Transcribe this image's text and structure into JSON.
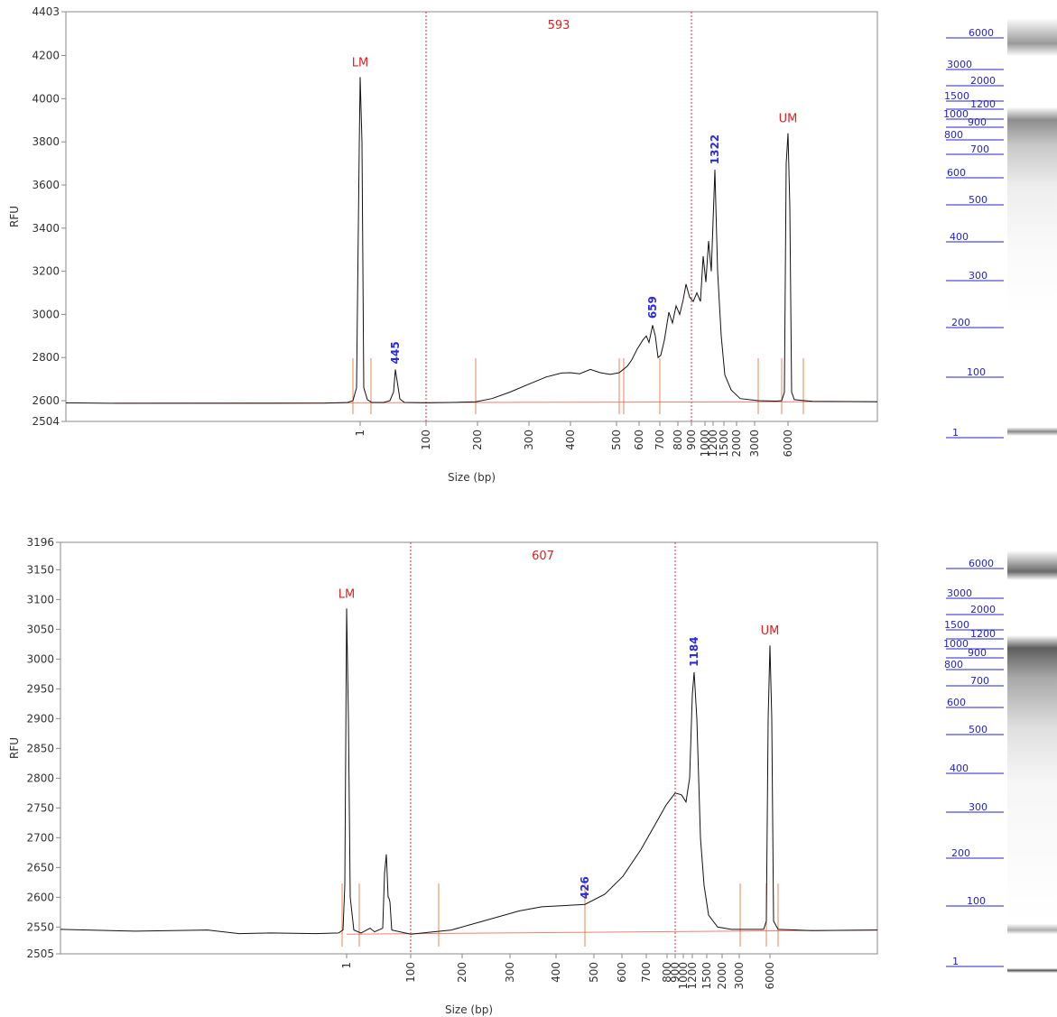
{
  "chart_data": [
    {
      "type": "line",
      "title": "",
      "xlabel": "Size (bp)",
      "ylabel": "RFU",
      "yticks": [
        "4403",
        "4200",
        "4000",
        "3800",
        "3600",
        "3400",
        "3200",
        "3000",
        "2800",
        "2600",
        "2504"
      ],
      "xticks": [
        "1",
        "100",
        "200",
        "300",
        "400",
        "500",
        "600",
        "700",
        "800",
        "900",
        "1000",
        "1200",
        "1500",
        "2000",
        "3000",
        "6000"
      ],
      "ylim": [
        2504,
        4403
      ],
      "region_label": "593",
      "markers": [
        {
          "label": "LM",
          "size": 1
        },
        {
          "label": "UM",
          "size": 6000
        }
      ],
      "peaks": [
        {
          "size": 1,
          "rfu": 4100,
          "label": "LM"
        },
        {
          "size": 445,
          "rfu": 2745,
          "label": "445"
        },
        {
          "size": 659,
          "rfu": 2955,
          "label": "659"
        },
        {
          "size": 1322,
          "rfu": 3670,
          "label": "1322"
        },
        {
          "size": 6000,
          "rfu": 3840,
          "label": "UM"
        }
      ],
      "gel_ladder": [
        "6000",
        "3000",
        "2000",
        "1500",
        "1200",
        "1000",
        "900",
        "800",
        "700",
        "600",
        "500",
        "400",
        "300",
        "200",
        "100",
        "1"
      ]
    },
    {
      "type": "line",
      "title": "",
      "xlabel": "Size (bp)",
      "ylabel": "RFU",
      "yticks": [
        "3196",
        "3150",
        "3100",
        "3050",
        "3000",
        "2950",
        "2900",
        "2850",
        "2800",
        "2750",
        "2700",
        "2650",
        "2600",
        "2550",
        "2505"
      ],
      "xticks": [
        "1",
        "100",
        "200",
        "300",
        "400",
        "500",
        "600",
        "700",
        "800",
        "900",
        "1000",
        "1200",
        "1500",
        "2000",
        "3000",
        "6000"
      ],
      "ylim": [
        2505,
        3196
      ],
      "region_label": "607",
      "markers": [
        {
          "label": "LM",
          "size": 1
        },
        {
          "label": "UM",
          "size": 6000
        }
      ],
      "peaks": [
        {
          "size": 1,
          "rfu": 3085,
          "label": "LM"
        },
        {
          "size": 426,
          "rfu": 2588,
          "label": "426"
        },
        {
          "size": 1184,
          "rfu": 2978,
          "label": "1184"
        },
        {
          "size": 6000,
          "rfu": 3023,
          "label": "UM"
        }
      ],
      "gel_ladder": [
        "6000",
        "3000",
        "2000",
        "1500",
        "1200",
        "1000",
        "900",
        "800",
        "700",
        "600",
        "500",
        "400",
        "300",
        "200",
        "100",
        "1"
      ]
    }
  ]
}
